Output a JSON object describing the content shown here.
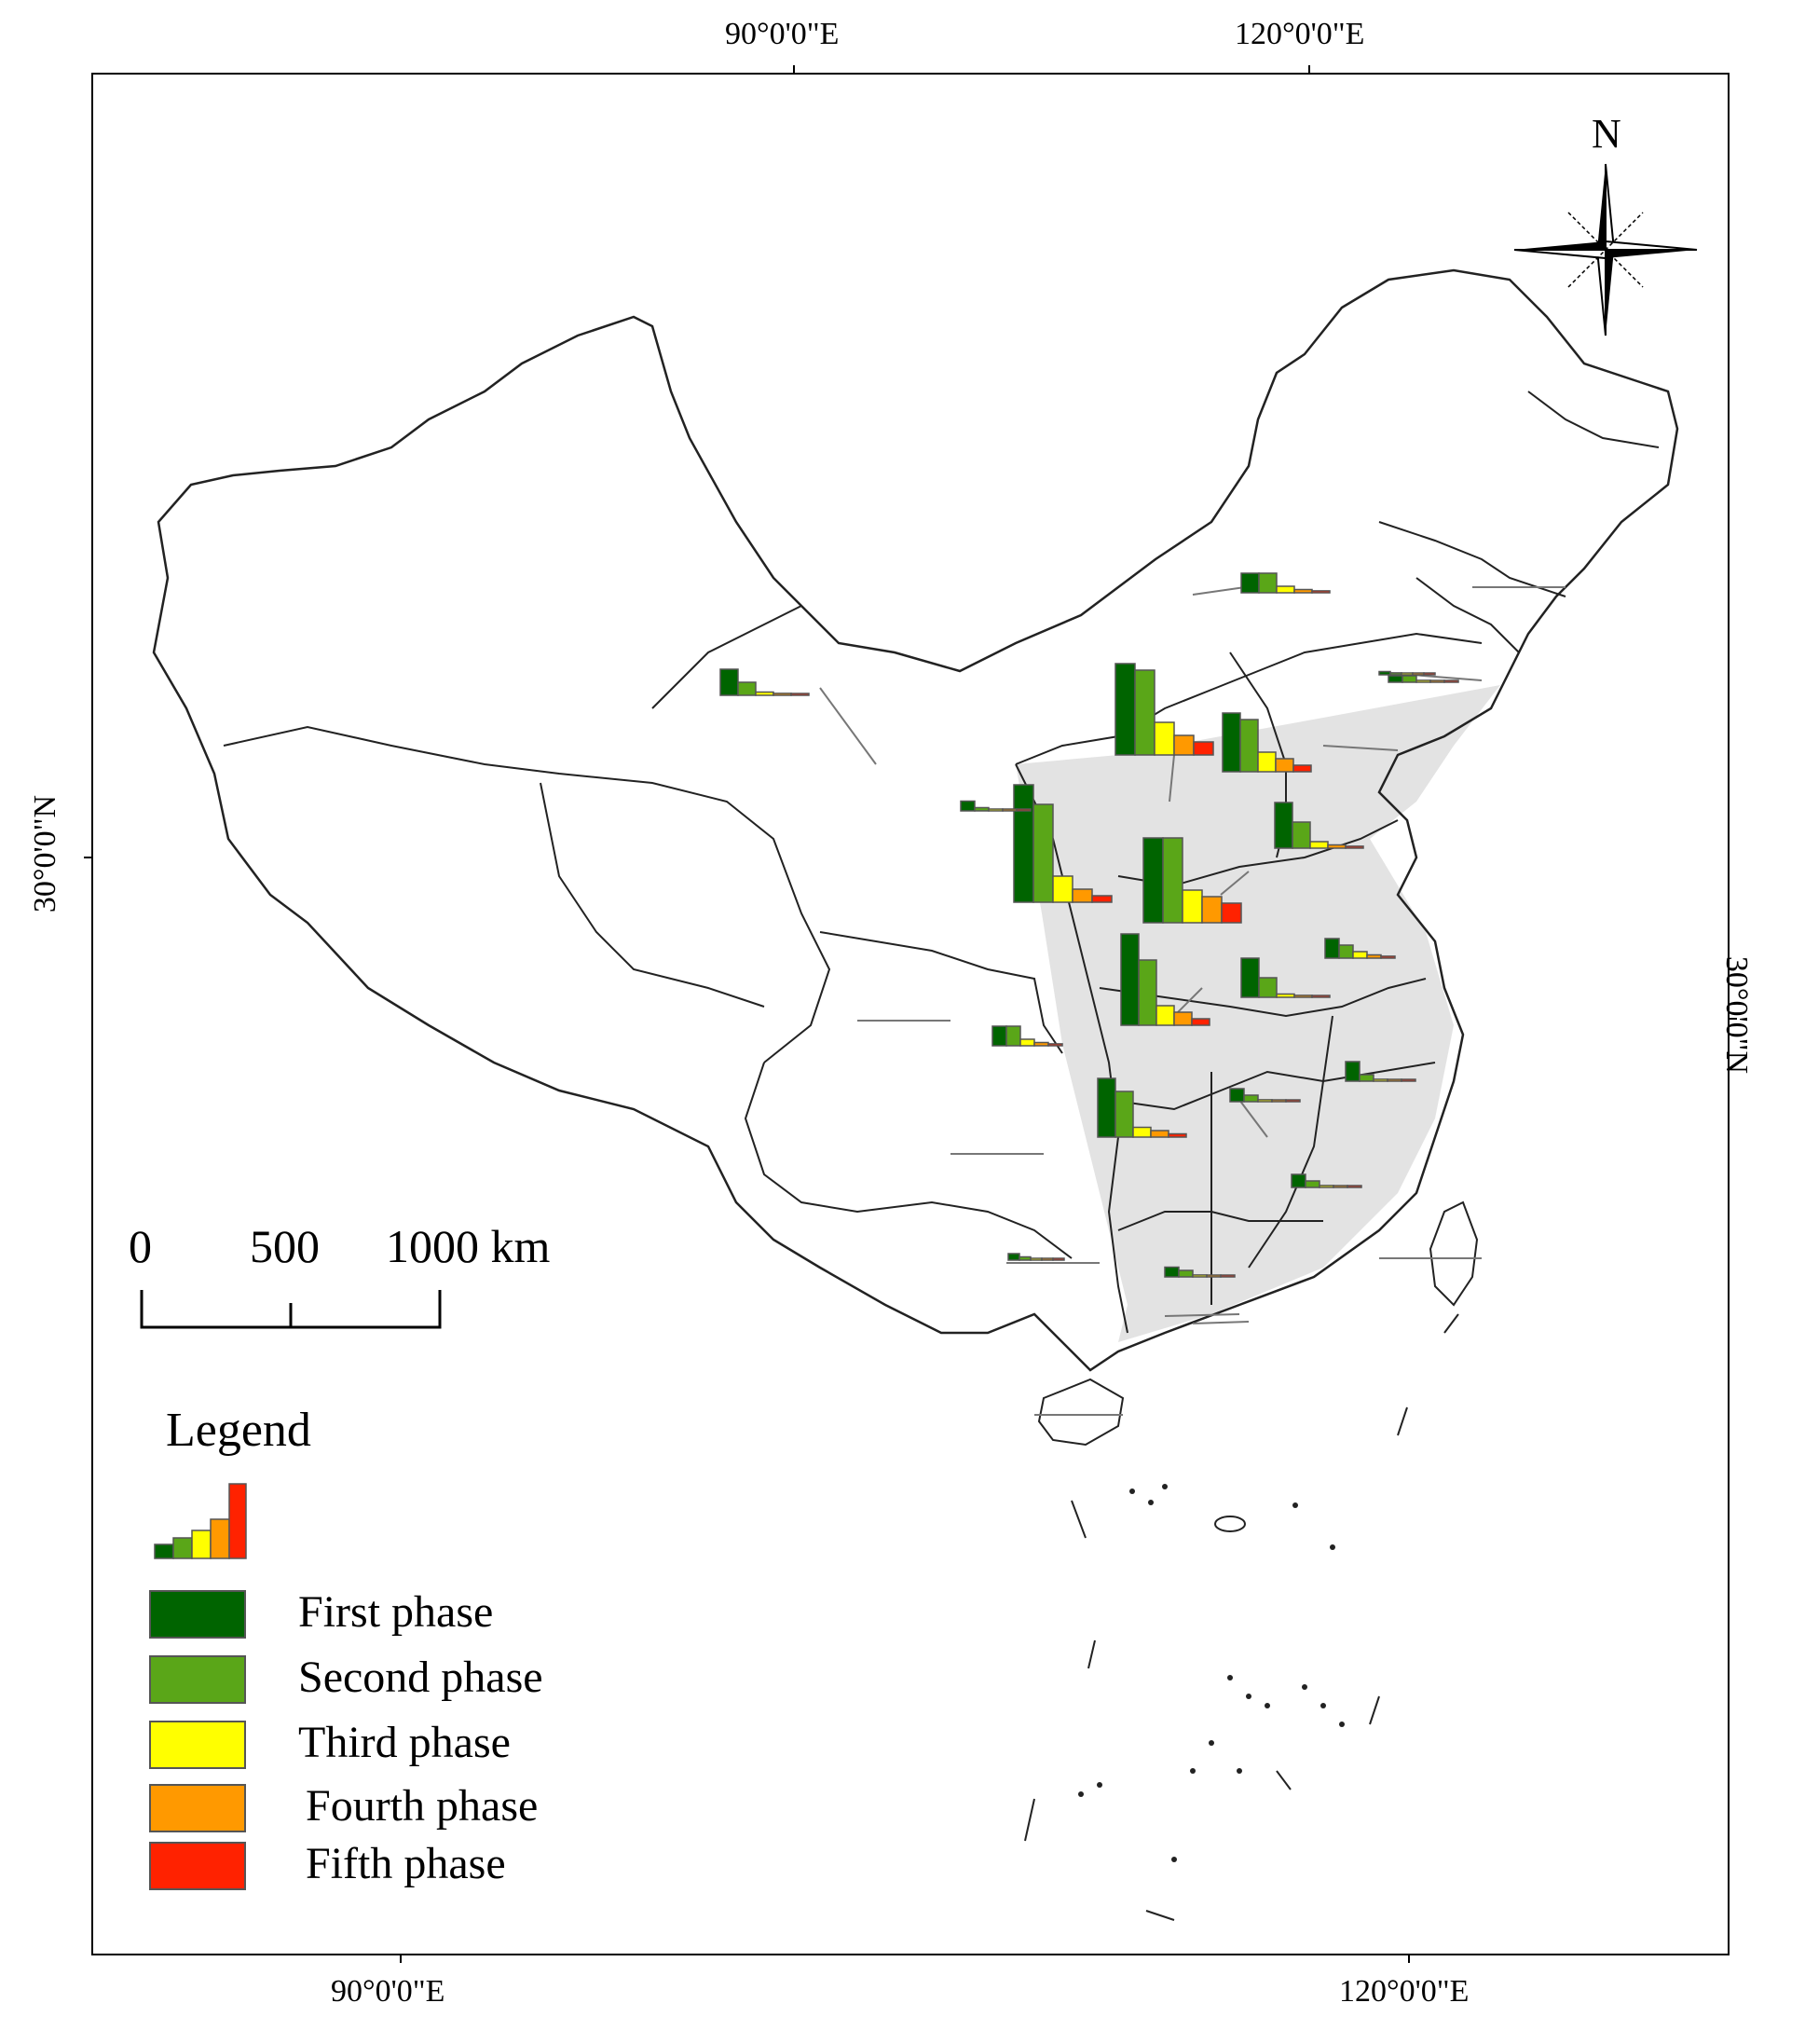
{
  "axes": {
    "top": [
      "90°0'0\"E",
      "120°0'0\"E"
    ],
    "bottom": [
      "90°0'0\"E",
      "120°0'0\"E"
    ],
    "left": "30°0'0\"N",
    "right": "30°0'0\"N"
  },
  "north_label": "N",
  "scale_bar": {
    "labels": [
      "0",
      "500",
      "1000 km"
    ]
  },
  "legend": {
    "title": "Legend",
    "items": [
      {
        "label": "First phase",
        "color": "#006400"
      },
      {
        "label": "Second phase",
        "color": "#5aa618"
      },
      {
        "label": "Third phase",
        "color": "#ffff00"
      },
      {
        "label": "Fourth phase",
        "color": "#ff9900"
      },
      {
        "label": "Fifth phase",
        "color": "#ff2200"
      }
    ]
  },
  "colors": {
    "region_fill": "#e3e3e3",
    "boundary": "#222222",
    "leader_line": "#777777"
  },
  "chart_data": {
    "type": "bar",
    "series": [
      "First phase",
      "Second phase",
      "Third phase",
      "Fourth phase",
      "Fifth phase"
    ],
    "groups": [
      {
        "values": [
          18,
          15,
          4,
          2,
          1
        ]
      },
      {
        "values": [
          14,
          13,
          5,
          3,
          2
        ]
      },
      {
        "values": [
          13,
          13,
          5,
          4,
          3
        ]
      },
      {
        "values": [
          9,
          8,
          3,
          2,
          1
        ]
      },
      {
        "values": [
          14,
          10,
          3,
          2,
          1
        ]
      },
      {
        "values": [
          7,
          4,
          1,
          0.5,
          0.3
        ]
      },
      {
        "values": [
          9,
          7,
          1.5,
          1,
          0.5
        ]
      },
      {
        "values": [
          6,
          3,
          0.5,
          0.3,
          0.2
        ]
      },
      {
        "values": [
          3,
          3,
          1,
          0.5,
          0.3
        ]
      },
      {
        "values": [
          4,
          2,
          0.5,
          0.3,
          0.1
        ]
      },
      {
        "values": [
          3,
          3,
          1,
          0.5,
          0.3
        ]
      },
      {
        "values": [
          3,
          2,
          1,
          0.5,
          0.3
        ]
      },
      {
        "values": [
          3,
          1,
          0.3,
          0.2,
          0.1
        ]
      },
      {
        "values": [
          2,
          1,
          0.3,
          0.2,
          0.1
        ]
      },
      {
        "values": [
          2,
          1,
          0.3,
          0.2,
          0.1
        ]
      },
      {
        "values": [
          1.5,
          1,
          0.3,
          0.2,
          0.1
        ]
      },
      {
        "values": [
          1.5,
          0.5,
          0.2,
          0.1,
          0.1
        ]
      },
      {
        "values": [
          1,
          1,
          0.3,
          0.2,
          0.1
        ]
      },
      {
        "values": [
          1,
          0.5,
          0.2,
          0.1,
          0.1
        ]
      },
      {
        "values": [
          0.5,
          0.3,
          0.1,
          0.1,
          0.1
        ]
      }
    ]
  }
}
